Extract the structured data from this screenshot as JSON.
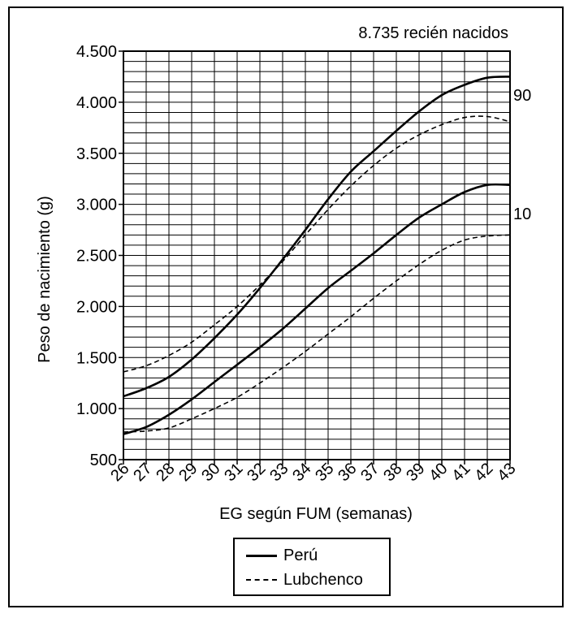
{
  "chart_data": {
    "type": "line",
    "annotation": "8.735 recién nacidos",
    "xlabel": "EG según FUM (semanas)",
    "ylabel": "Peso de nacimiento (g)",
    "xlim": [
      26,
      43
    ],
    "ylim": [
      500,
      4500
    ],
    "x_ticks": [
      "26",
      "27",
      "28",
      "29",
      "30",
      "31",
      "32",
      "33",
      "34",
      "35",
      "36",
      "37",
      "38",
      "39",
      "40",
      "41",
      "42",
      "43"
    ],
    "y_ticks": [
      {
        "value": 500,
        "label": "500"
      },
      {
        "value": 1000,
        "label": "1.000"
      },
      {
        "value": 1500,
        "label": "1.500"
      },
      {
        "value": 2000,
        "label": "2.000"
      },
      {
        "value": 2500,
        "label": "2.500"
      },
      {
        "value": 3000,
        "label": "3.000"
      },
      {
        "value": 3500,
        "label": "3.500"
      },
      {
        "value": 4000,
        "label": "4.000"
      },
      {
        "value": 4500,
        "label": "4.500"
      }
    ],
    "grid": {
      "major": true,
      "minor_y_step": 100
    },
    "percentile_labels": [
      {
        "text": "90",
        "y": 4070
      },
      {
        "text": "10",
        "y": 2920
      }
    ],
    "legend": {
      "position": "bottom-center",
      "entries": [
        {
          "name": "Perú",
          "style": "solid"
        },
        {
          "name": "Lubchenco",
          "style": "dashed"
        }
      ]
    },
    "series": [
      {
        "name": "Perú",
        "percentile": "90",
        "style": "solid",
        "x": [
          26,
          27,
          28,
          29,
          30,
          31,
          32,
          33,
          34,
          35,
          36,
          37,
          38,
          39,
          40,
          41,
          42,
          43
        ],
        "values": [
          1120,
          1200,
          1310,
          1480,
          1690,
          1920,
          2180,
          2460,
          2750,
          3050,
          3320,
          3520,
          3720,
          3910,
          4070,
          4170,
          4240,
          4250
        ]
      },
      {
        "name": "Perú",
        "percentile": "10",
        "style": "solid",
        "x": [
          26,
          27,
          28,
          29,
          30,
          31,
          32,
          33,
          34,
          35,
          36,
          37,
          38,
          39,
          40,
          41,
          42,
          43
        ],
        "values": [
          750,
          820,
          940,
          1090,
          1260,
          1430,
          1600,
          1780,
          1980,
          2180,
          2350,
          2520,
          2700,
          2870,
          3000,
          3120,
          3190,
          3190
        ]
      },
      {
        "name": "Lubchenco",
        "percentile": "90",
        "style": "dashed",
        "x": [
          26,
          27,
          28,
          29,
          30,
          31,
          32,
          33,
          34,
          35,
          36,
          37,
          38,
          39,
          40,
          41,
          42,
          43
        ],
        "values": [
          1360,
          1420,
          1520,
          1650,
          1820,
          2000,
          2210,
          2440,
          2700,
          2950,
          3180,
          3380,
          3550,
          3680,
          3780,
          3850,
          3860,
          3810
        ]
      },
      {
        "name": "Lubchenco",
        "percentile": "10",
        "style": "dashed",
        "x": [
          26,
          27,
          28,
          29,
          30,
          31,
          32,
          33,
          34,
          35,
          36,
          37,
          38,
          39,
          40,
          41,
          42,
          43
        ],
        "values": [
          770,
          780,
          810,
          900,
          1000,
          1110,
          1250,
          1400,
          1560,
          1730,
          1900,
          2080,
          2250,
          2410,
          2550,
          2650,
          2690,
          2700
        ]
      }
    ]
  }
}
